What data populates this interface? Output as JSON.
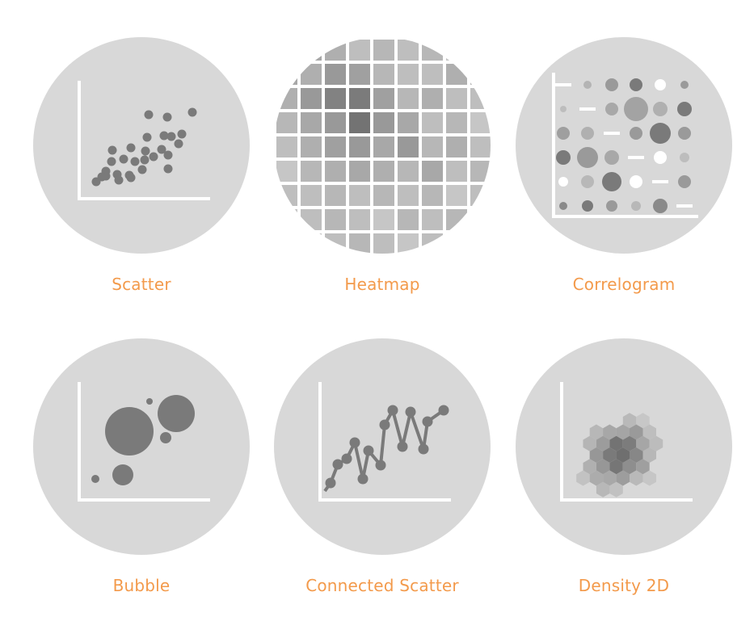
{
  "gallery": {
    "accent_color": "#f39a4b",
    "circle_color": "#d8d8d8",
    "mark_color": "#7a7a7a",
    "items": [
      {
        "label": "Scatter",
        "icon": "scatter-plot-icon"
      },
      {
        "label": "Heatmap",
        "icon": "heatmap-icon"
      },
      {
        "label": "Correlogram",
        "icon": "correlogram-icon"
      },
      {
        "label": "Bubble",
        "icon": "bubble-chart-icon"
      },
      {
        "label": "Connected Scatter",
        "icon": "connected-scatter-icon"
      },
      {
        "label": "Density 2D",
        "icon": "density-2d-icon"
      }
    ]
  }
}
